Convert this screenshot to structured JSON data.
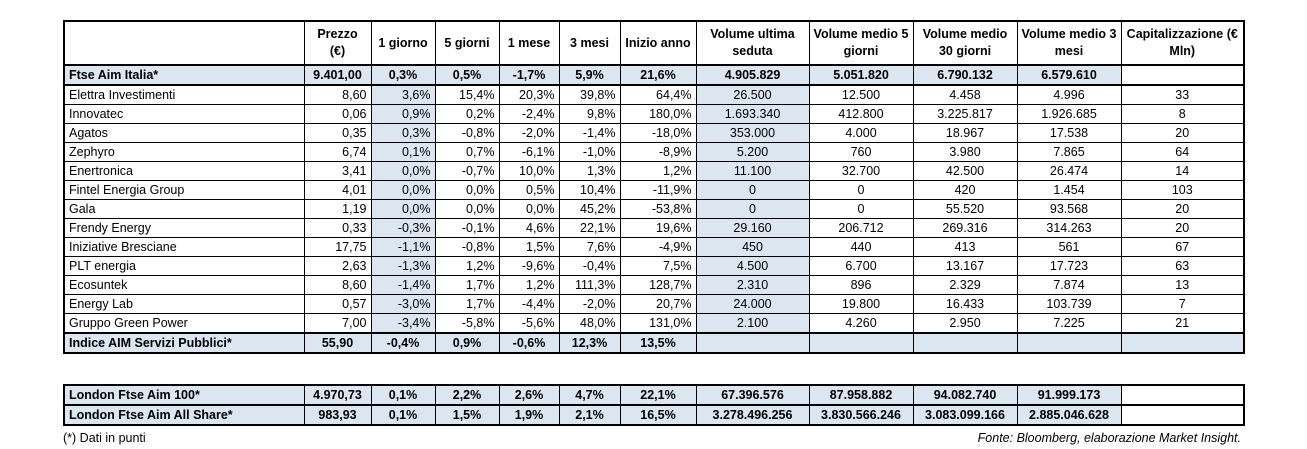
{
  "headers": [
    "",
    "Prezzo (€)",
    "1 giorno",
    "5 giorni",
    "1 mese",
    "3 mesi",
    "Inizio anno",
    "Volume ultima seduta",
    "Volume medio 5 giorni",
    "Volume medio 30 giorni",
    "Volume medio 3 mesi",
    "Capitalizzazione (€ Mln)"
  ],
  "index_row": [
    "Ftse Aim Italia*",
    "9.401,00",
    "0,3%",
    "0,5%",
    "-1,7%",
    "5,9%",
    "21,6%",
    "4.905.829",
    "5.051.820",
    "6.790.132",
    "6.579.610",
    ""
  ],
  "rows": [
    [
      "Elettra Investimenti",
      "8,60",
      "3,6%",
      "15,4%",
      "20,3%",
      "39,8%",
      "64,4%",
      "26.500",
      "12.500",
      "4.458",
      "4.996",
      "33"
    ],
    [
      "Innovatec",
      "0,06",
      "0,9%",
      "0,2%",
      "-2,4%",
      "9,8%",
      "180,0%",
      "1.693.340",
      "412.800",
      "3.225.817",
      "1.926.685",
      "8"
    ],
    [
      "Agatos",
      "0,35",
      "0,3%",
      "-0,8%",
      "-2,0%",
      "-1,4%",
      "-18,0%",
      "353.000",
      "4.000",
      "18.967",
      "17.538",
      "20"
    ],
    [
      "Zephyro",
      "6,74",
      "0,1%",
      "0,7%",
      "-6,1%",
      "-1,0%",
      "-8,9%",
      "5.200",
      "760",
      "3.980",
      "7.865",
      "64"
    ],
    [
      "Enertronica",
      "3,41",
      "0,0%",
      "-0,7%",
      "10,0%",
      "1,3%",
      "1,2%",
      "11.100",
      "32.700",
      "42.500",
      "26.474",
      "14"
    ],
    [
      "Fintel Energia Group",
      "4,01",
      "0,0%",
      "0,0%",
      "0,5%",
      "10,4%",
      "-11,9%",
      "0",
      "0",
      "420",
      "1.454",
      "103"
    ],
    [
      "Gala",
      "1,19",
      "0,0%",
      "0,0%",
      "0,0%",
      "45,2%",
      "-53,8%",
      "0",
      "0",
      "55.520",
      "93.568",
      "20"
    ],
    [
      "Frendy Energy",
      "0,33",
      "-0,3%",
      "-0,1%",
      "4,6%",
      "22,1%",
      "19,6%",
      "29.160",
      "206.712",
      "269.316",
      "314.263",
      "20"
    ],
    [
      "Iniziative Bresciane",
      "17,75",
      "-1,1%",
      "-0,8%",
      "1,5%",
      "7,6%",
      "-4,9%",
      "450",
      "440",
      "413",
      "561",
      "67"
    ],
    [
      "PLT energia",
      "2,63",
      "-1,3%",
      "1,2%",
      "-9,6%",
      "-0,4%",
      "7,5%",
      "4.500",
      "6.700",
      "13.167",
      "17.723",
      "63"
    ],
    [
      "Ecosuntek",
      "8,60",
      "-1,4%",
      "1,7%",
      "1,2%",
      "111,3%",
      "128,7%",
      "2.310",
      "896",
      "2.329",
      "7.874",
      "13"
    ],
    [
      "Energy Lab",
      "0,57",
      "-3,0%",
      "1,7%",
      "-4,4%",
      "-2,0%",
      "20,7%",
      "24.000",
      "19.800",
      "16.433",
      "103.739",
      "7"
    ],
    [
      "Gruppo Green Power",
      "7,00",
      "-3,4%",
      "-5,8%",
      "-5,6%",
      "48,0%",
      "131,0%",
      "2.100",
      "4.260",
      "2.950",
      "7.225",
      "21"
    ]
  ],
  "sector_row": [
    "Indice AIM Servizi Pubblici*",
    "55,90",
    "-0,4%",
    "0,9%",
    "-0,6%",
    "12,3%",
    "13,5%",
    "",
    "",
    "",
    "",
    ""
  ],
  "london_rows": [
    [
      "London Ftse Aim 100*",
      "4.970,73",
      "0,1%",
      "2,2%",
      "2,6%",
      "4,7%",
      "22,1%",
      "67.396.576",
      "87.958.882",
      "94.082.740",
      "91.999.173",
      ""
    ],
    [
      "London Ftse Aim All Share*",
      "983,93",
      "0,1%",
      "1,5%",
      "1,9%",
      "2,1%",
      "16,5%",
      "3.278.496.256",
      "3.830.566.246",
      "3.083.099.166",
      "2.885.046.628",
      ""
    ]
  ],
  "footnote": "(*) Dati in punti",
  "source": "Fonte: Bloomberg, elaborazione Market Insight.",
  "colors": {
    "shade": "#dce6f1"
  }
}
